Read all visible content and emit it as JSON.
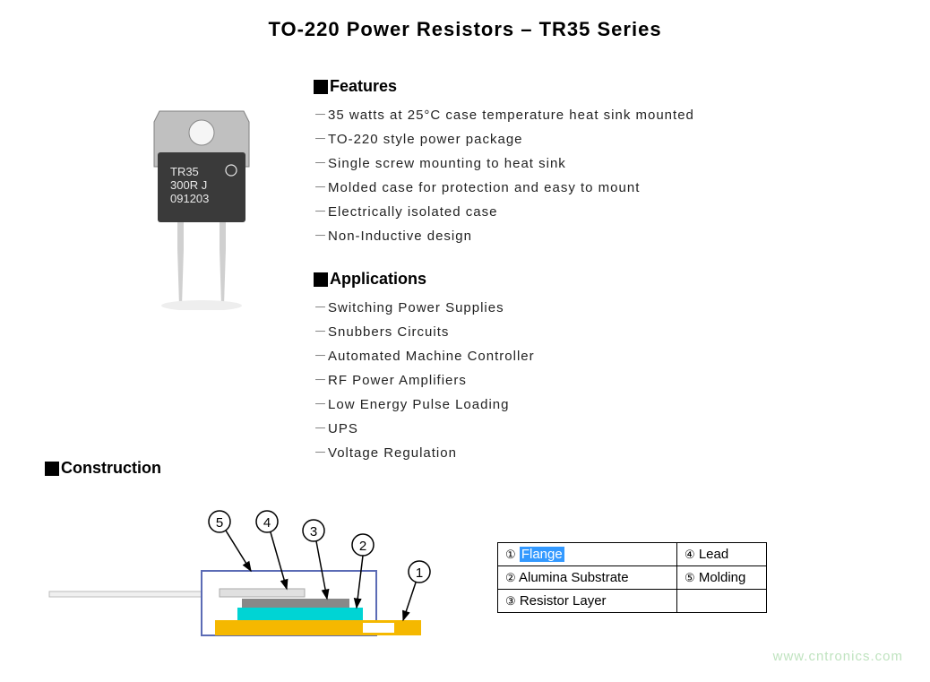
{
  "title": "TO-220 Power Resistors – TR35 Series",
  "features": {
    "heading": "Features",
    "items": [
      "35 watts at 25°C case temperature heat sink mounted",
      "TO-220 style power package",
      "Single screw mounting to heat sink",
      "Molded case for protection and easy to mount",
      "Electrically isolated case",
      "Non-Inductive design"
    ]
  },
  "applications": {
    "heading": "Applications",
    "items": [
      "Switching Power Supplies",
      "Snubbers Circuits",
      "Automated Machine Controller",
      "RF Power Amplifiers",
      "Low Energy Pulse Loading",
      "UPS",
      "Voltage Regulation"
    ]
  },
  "construction": {
    "heading": "Construction",
    "parts": [
      {
        "num": "①",
        "name": "Flange",
        "highlighted": true
      },
      {
        "num": "②",
        "name": "Alumina Substrate"
      },
      {
        "num": "③",
        "name": "Resistor Layer"
      },
      {
        "num": "④",
        "name": "Lead"
      },
      {
        "num": "⑤",
        "name": "Molding"
      }
    ],
    "diagram": {
      "labels": [
        "⑤",
        "④",
        "③",
        "②",
        "①"
      ],
      "colors": {
        "flange": "#f5b800",
        "flange_inner": "#ffffff",
        "substrate": "#00d4d4",
        "resistor": "#888888",
        "lead": "#cccccc",
        "molding_outline": "#5b6bb5",
        "arrow": "#000000",
        "circle_stroke": "#000000"
      }
    }
  },
  "product_image": {
    "label_lines": [
      "TR35",
      "300R J",
      "091203"
    ],
    "colors": {
      "tab": "#c0c0c0",
      "body": "#3a3a3a",
      "text": "#e8e8e8",
      "lead": "#d0d0d0"
    }
  },
  "watermark": "www.cntronics.com"
}
